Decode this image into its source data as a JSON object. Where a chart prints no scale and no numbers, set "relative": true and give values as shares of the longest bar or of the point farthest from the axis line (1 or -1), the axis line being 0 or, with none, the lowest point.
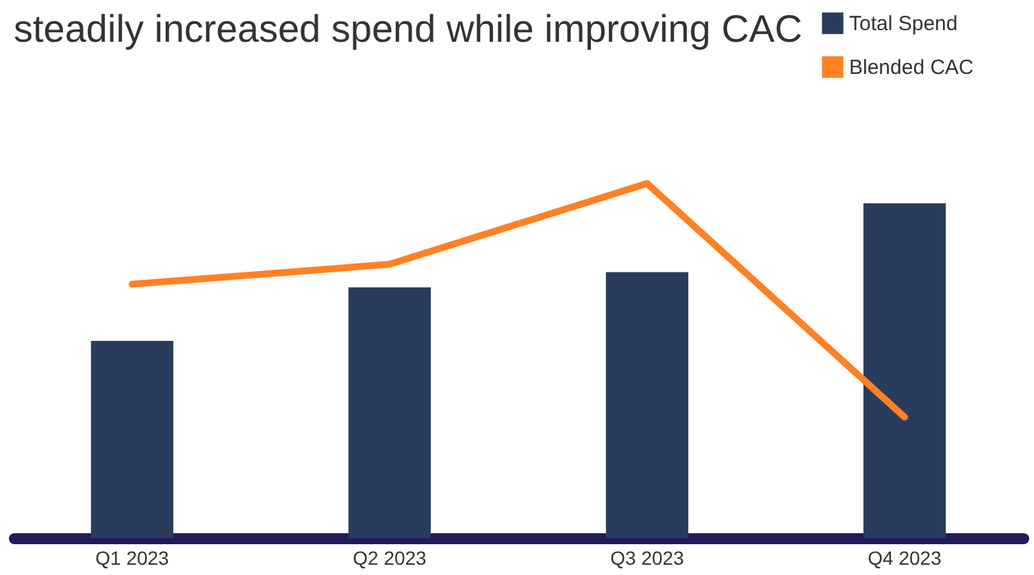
{
  "chart_data": {
    "type": "bar",
    "title": "steadily increased spend while improving CAC",
    "relative": true,
    "legend": "top right",
    "grid": false,
    "categories": [
      "Q1 2023",
      "Q2 2023",
      "Q3 2023",
      "Q4 2023"
    ],
    "series": [
      {
        "name": "Total Spend",
        "type": "bar",
        "color": "#2a3c5e",
        "values": [
          0.556,
          0.707,
          0.75,
          0.944
        ]
      },
      {
        "name": "Blended CAC",
        "type": "line",
        "color": "#ff8124",
        "values": [
          0.716,
          0.772,
          1,
          0.341
        ]
      }
    ]
  }
}
